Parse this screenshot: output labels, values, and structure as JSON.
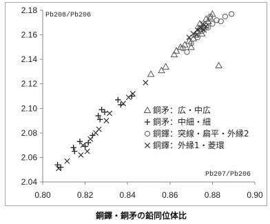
{
  "chart_data": {
    "type": "scatter",
    "title": "銅鐸・銅矛の鉛同位体比",
    "xlabel": "Pb207/Pb206",
    "ylabel": "Pb208/Pb206",
    "xlim": [
      0.8,
      0.9
    ],
    "ylim": [
      2.04,
      2.18
    ],
    "xticks": [
      "0.80",
      "0.82",
      "0.84",
      "0.86",
      "0.88",
      "0.90"
    ],
    "yticks": [
      "2.04",
      "2.06",
      "2.08",
      "2.10",
      "2.12",
      "2.14",
      "2.16",
      "2.18"
    ],
    "grid": false,
    "legend": "center-right",
    "series": [
      {
        "name": "銅矛：広・中広",
        "marker": "triangle",
        "color": "#555555",
        "points": [
          [
            0.851,
            2.128
          ],
          [
            0.856,
            2.131
          ],
          [
            0.858,
            2.134
          ],
          [
            0.862,
            2.144
          ],
          [
            0.863,
            2.147
          ],
          [
            0.865,
            2.15
          ],
          [
            0.867,
            2.152
          ],
          [
            0.869,
            2.155
          ],
          [
            0.87,
            2.15
          ],
          [
            0.871,
            2.157
          ],
          [
            0.872,
            2.16
          ],
          [
            0.873,
            2.163
          ],
          [
            0.874,
            2.165
          ],
          [
            0.874,
            2.169
          ],
          [
            0.875,
            2.161
          ],
          [
            0.876,
            2.166
          ],
          [
            0.877,
            2.168
          ],
          [
            0.877,
            2.173
          ],
          [
            0.878,
            2.171
          ],
          [
            0.879,
            2.174
          ],
          [
            0.88,
            2.177
          ],
          [
            0.883,
            2.135
          ]
        ]
      },
      {
        "name": "銅矛：中細・細",
        "marker": "plus",
        "color": "#222222",
        "points": [
          [
            0.807,
            2.054
          ],
          [
            0.8085,
            2.052
          ],
          [
            0.8145,
            2.068
          ],
          [
            0.815,
            2.065
          ],
          [
            0.8175,
            2.073
          ],
          [
            0.82,
            2.069
          ],
          [
            0.8215,
            2.072
          ],
          [
            0.8235,
            2.078
          ],
          [
            0.8262,
            2.094
          ],
          [
            0.827,
            2.091
          ],
          [
            0.8278,
            2.099
          ],
          [
            0.8292,
            2.097
          ],
          [
            0.8355,
            2.107
          ],
          [
            0.8368,
            2.103
          ],
          [
            0.842,
            2.11
          ]
        ]
      },
      {
        "name": "銅鐸：突線・扁平・外縁2",
        "marker": "circle",
        "color": "#555555",
        "points": [
          [
            0.866,
            2.149
          ],
          [
            0.868,
            2.146
          ],
          [
            0.87,
            2.153
          ],
          [
            0.873,
            2.158
          ],
          [
            0.875,
            2.163
          ],
          [
            0.878,
            2.166
          ],
          [
            0.879,
            2.175
          ],
          [
            0.88,
            2.169
          ],
          [
            0.882,
            2.172
          ],
          [
            0.884,
            2.171
          ],
          [
            0.886,
            2.175
          ],
          [
            0.889,
            2.177
          ]
        ]
      },
      {
        "name": "銅鐸：外縁1・菱環",
        "marker": "cross",
        "color": "#333333",
        "points": [
          [
            0.8075,
            2.051
          ],
          [
            0.8115,
            2.057
          ],
          [
            0.818,
            2.062
          ],
          [
            0.819,
            2.07
          ],
          [
            0.821,
            2.065
          ],
          [
            0.8225,
            2.075
          ],
          [
            0.825,
            2.08
          ],
          [
            0.8265,
            2.083
          ],
          [
            0.83,
            2.09
          ],
          [
            0.8315,
            2.096
          ],
          [
            0.838,
            2.104
          ],
          [
            0.8405,
            2.109
          ],
          [
            0.8425,
            2.112
          ],
          [
            0.8485,
            2.121
          ],
          [
            0.869,
            2.158
          ],
          [
            0.871,
            2.161
          ],
          [
            0.8725,
            2.16
          ],
          [
            0.873,
            2.164
          ],
          [
            0.8745,
            2.166
          ],
          [
            0.8755,
            2.169
          ],
          [
            0.876,
            2.164
          ],
          [
            0.877,
            2.167
          ]
        ]
      }
    ]
  }
}
